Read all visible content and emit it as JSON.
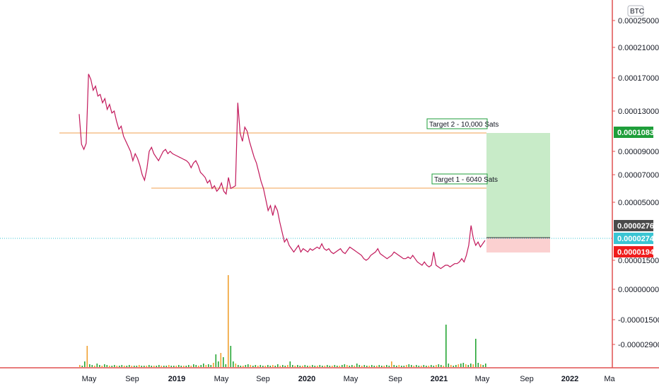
{
  "chart_data": {
    "type": "line",
    "symbol": "BTC",
    "y_axis_ticks": [
      "0.00025000",
      "0.00021000",
      "0.00017000",
      "0.00013000",
      "0.00009000",
      "0.00007000",
      "0.00005000",
      "0.00001500",
      "0.00000000",
      "-0.00001500",
      "-0.00002900"
    ],
    "y_axis_tick_values": [
      0.00025,
      0.00021,
      0.00017,
      0.00013,
      9e-05,
      7e-05,
      5e-05,
      1.5e-05,
      0.0,
      -1.5e-05,
      -2.9e-05
    ],
    "x_axis_labels": [
      {
        "label": "May",
        "bold": false
      },
      {
        "label": "Sep",
        "bold": false
      },
      {
        "label": "2019",
        "bold": true
      },
      {
        "label": "May",
        "bold": false
      },
      {
        "label": "Sep",
        "bold": false
      },
      {
        "label": "2020",
        "bold": true
      },
      {
        "label": "May",
        "bold": false
      },
      {
        "label": "Sep",
        "bold": false
      },
      {
        "label": "2021",
        "bold": true
      },
      {
        "label": "May",
        "bold": false
      },
      {
        "label": "Sep",
        "bold": false
      },
      {
        "label": "2022",
        "bold": true
      },
      {
        "label": "Ma",
        "bold": false
      }
    ],
    "price_tags": {
      "target": {
        "value": "0.00010839",
        "color": "#1e9e3a"
      },
      "entry": {
        "value": "0.00002763",
        "color": "#4a4a4a"
      },
      "current": {
        "value": "0.00002748",
        "color": "#3bc5d3"
      },
      "stop": {
        "value": "0.00001942",
        "color": "#f01c1c"
      }
    },
    "annotations": {
      "target1": "Target 1 - 6040 Sats",
      "target2": "Target 2 - 10,000 Sats"
    },
    "colors": {
      "price_line": "#c2185b",
      "level_line": "#f0a050",
      "profit_zone": "#c8ebc8",
      "loss_zone": "#fbd0d0",
      "axis_line": "#e05050",
      "volume_up": "#26a634",
      "volume_down": "#f0a030"
    },
    "series": [
      {
        "values": [
          0.000127,
          9.7e-05,
          9.2e-05,
          9.8e-05,
          0.000175,
          0.000168,
          0.000155,
          0.00016,
          0.000148,
          0.00015,
          0.00014,
          0.000145,
          0.000132,
          0.000138,
          0.000128,
          0.00013,
          0.00012,
          0.000112,
          0.000115,
          0.000105,
          0.0001,
          9.5e-05,
          9e-05,
          8.2e-05,
          8.8e-05,
          8.4e-05,
          7.8e-05,
          7e-05,
          6.6e-05,
          7.5e-05,
          9e-05,
          9.4e-05,
          8.8e-05,
          8.5e-05,
          8.2e-05,
          8.6e-05,
          9e-05,
          9.2e-05,
          8.8e-05,
          9e-05,
          8.8e-05,
          8.7e-05,
          8.6e-05,
          8.5e-05,
          8.4e-05,
          8.3e-05,
          8.2e-05,
          8e-05,
          7.6e-05,
          8e-05,
          8.2e-05,
          7.8e-05,
          7.2e-05,
          7e-05,
          6.8e-05,
          6.4e-05,
          6.6e-05,
          6e-05,
          6.2e-05,
          5.8e-05,
          6e-05,
          6.4e-05,
          5.8e-05,
          5.6e-05,
          6.8e-05,
          6e-05,
          6.1e-05,
          6.2e-05,
          0.00014,
          0.000108,
          0.0001,
          0.000114,
          0.00011,
          0.0001,
          9.2e-05,
          8.5e-05,
          8e-05,
          7.2e-05,
          6.5e-05,
          6e-05,
          5.2e-05,
          4.5e-05,
          4.8e-05,
          4.2e-05,
          4.8e-05,
          4.5e-05,
          3.8e-05,
          3.2e-05,
          2.6e-05,
          2.8e-05,
          2.4e-05,
          2.2e-05,
          2e-05,
          2.2e-05,
          2.4e-05,
          2e-05,
          2.2e-05,
          2.1e-05,
          2e-05,
          2.2e-05,
          2.1e-05,
          2.2e-05,
          2.3e-05,
          2.2e-05,
          2.5e-05,
          2.2e-05,
          2.1e-05,
          2.2e-05,
          2e-05,
          1.9e-05,
          2e-05,
          2.1e-05,
          2.2e-05,
          2e-05,
          1.9e-05,
          2.1e-05,
          2.3e-05,
          2.2e-05,
          2.1e-05,
          2e-05,
          1.9e-05,
          1.8e-05,
          1.6e-05,
          1.5e-05,
          1.6e-05,
          1.8e-05,
          1.9e-05,
          2e-05,
          2.2e-05,
          1.9e-05,
          1.8e-05,
          1.7e-05,
          1.6e-05,
          1.7e-05,
          1.8e-05,
          2e-05,
          1.9e-05,
          1.8e-05,
          1.7e-05,
          1.6e-05,
          1.6e-05,
          1.7e-05,
          1.6e-05,
          1.8e-05,
          1.6e-05,
          1.4e-05,
          1.3e-05,
          1.2e-05,
          1.4e-05,
          1.2e-05,
          1.1e-05,
          1.2e-05,
          2e-05,
          1.2e-05,
          1.1e-05,
          1e-05,
          1.1e-05,
          1.2e-05,
          1.2e-05,
          1.1e-05,
          1.2e-05,
          1.3e-05,
          1.3e-05,
          1.4e-05,
          1.6e-05,
          1.4e-05,
          1.8e-05,
          2.4e-05,
          3.6e-05,
          2.8e-05,
          2.4e-05,
          2.6e-05,
          2.3e-05,
          2.5e-05,
          2.7e-05
        ]
      }
    ],
    "volume": [
      3,
      2,
      8,
      30,
      4,
      3,
      2,
      5,
      3,
      2,
      4,
      3,
      2,
      2,
      3,
      2,
      2,
      3,
      2,
      2,
      3,
      2,
      2,
      2,
      3,
      2,
      2,
      2,
      3,
      2,
      2,
      2,
      3,
      2,
      2,
      2,
      3,
      2,
      2,
      2,
      3,
      2,
      2,
      2,
      3,
      2,
      4,
      3,
      2,
      3,
      5,
      3,
      4,
      3,
      6,
      18,
      8,
      20,
      14,
      4,
      130,
      30,
      8,
      5,
      3,
      2,
      2,
      3,
      4,
      3,
      2,
      3,
      2,
      3,
      2,
      2,
      3,
      2,
      3,
      2,
      4,
      2,
      3,
      2,
      3,
      8,
      3,
      2,
      3,
      2,
      2,
      3,
      2,
      2,
      3,
      2,
      2,
      3,
      2,
      2,
      3,
      2,
      2,
      3,
      2,
      2,
      3,
      4,
      3,
      2,
      3,
      2,
      5,
      3,
      2,
      3,
      2,
      2,
      3,
      2,
      2,
      3,
      2,
      2,
      3,
      2,
      8,
      3,
      2,
      3,
      2,
      2,
      3,
      4,
      3,
      2,
      3,
      2,
      2,
      3,
      2,
      2,
      3,
      2,
      3,
      4,
      3,
      2,
      60,
      5,
      3,
      2,
      3,
      4,
      5,
      6,
      4,
      3,
      5,
      4,
      40,
      6,
      4,
      3,
      5
    ]
  }
}
